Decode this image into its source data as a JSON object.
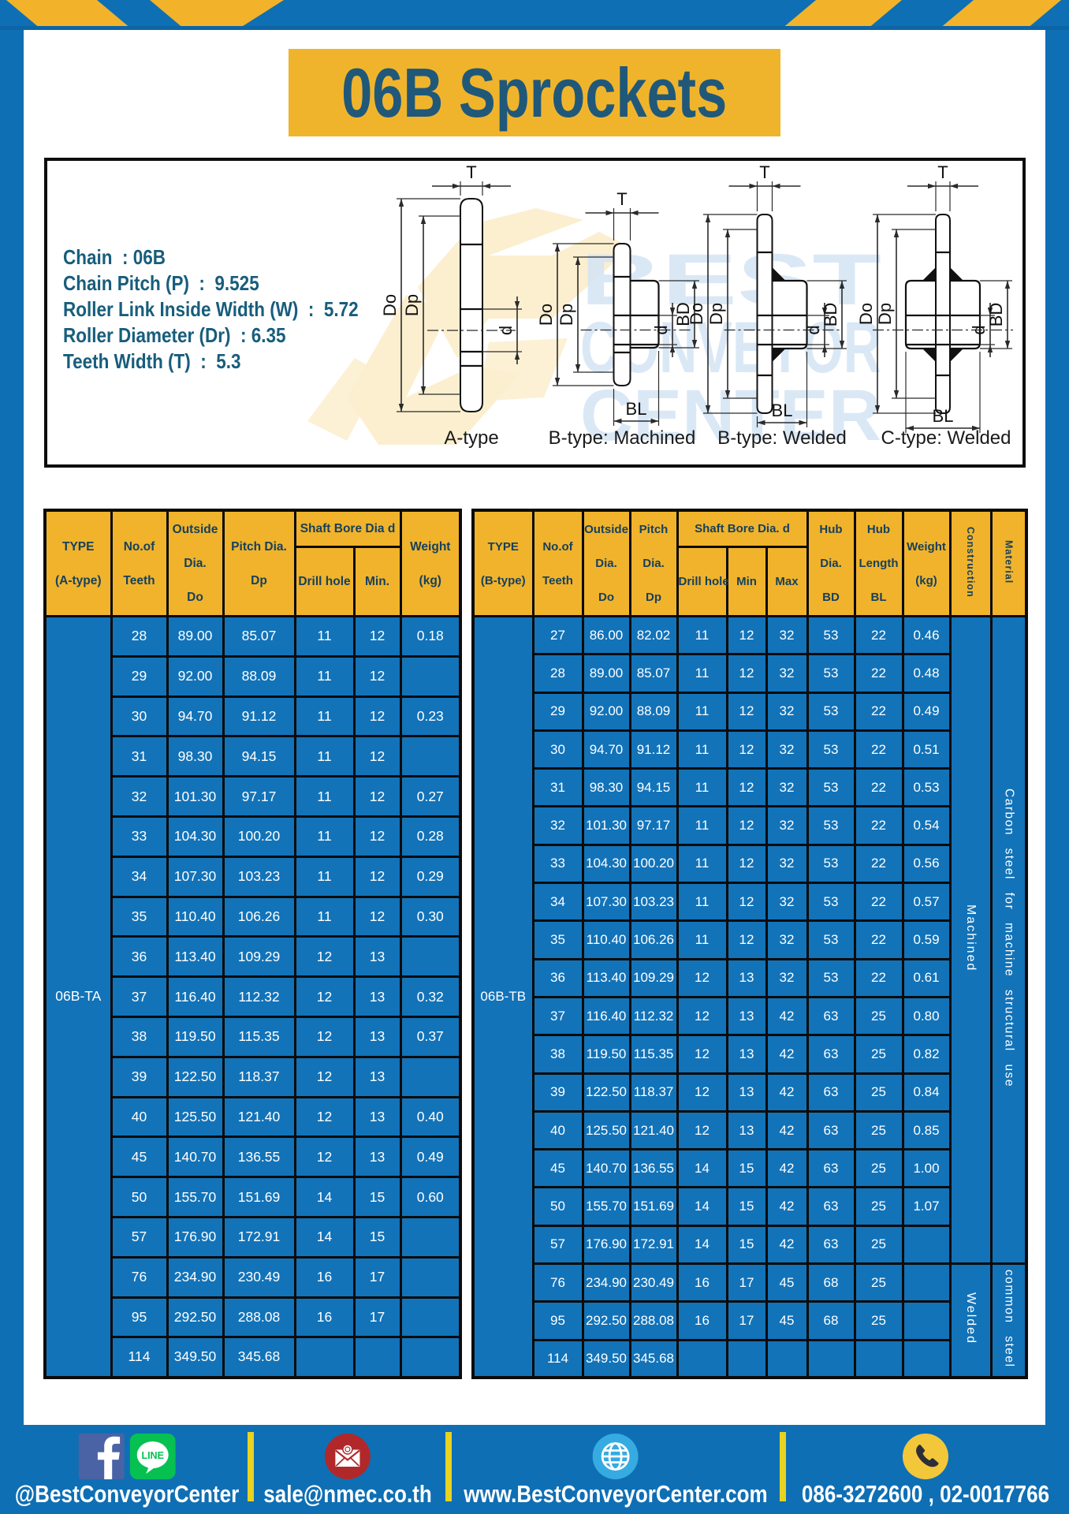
{
  "title": "06B Sprockets",
  "specs": {
    "lines": [
      "Chain  : 06B",
      "Chain Pitch (P)  :  9.525",
      "Roller Link Inside Width (W)  :  5.72",
      "Roller Diameter (Dr)  : 6.35",
      "Teeth Width (T)  :  5.3"
    ]
  },
  "diagram": {
    "captions": [
      "A-type",
      "B-type: Machined",
      "B-type: Welded",
      "C-type: Welded"
    ],
    "labels": {
      "t": "T",
      "outside": "Do",
      "pitch": "Dp",
      "bore": "d",
      "hub_dia": "BD",
      "hub_len": "BL"
    }
  },
  "watermark": {
    "words": [
      "BEST",
      "CONVEYOR",
      "CENTER"
    ]
  },
  "table_a": {
    "header": {
      "type": [
        "TYPE",
        "(A-type)"
      ],
      "teeth": [
        "No.of",
        "Teeth"
      ],
      "outside": [
        "Outside",
        "Dia.",
        "Do"
      ],
      "pitch": [
        "Pitch Dia.",
        "Dp"
      ],
      "shaft_bore": "Shaft Bore Dia d",
      "drill": "Drill hole",
      "min": "Min.",
      "weight": [
        "Weight",
        "(kg)"
      ]
    },
    "type_label": "06B-TA",
    "rows": [
      [
        "28",
        "89.00",
        "85.07",
        "11",
        "12",
        "0.18"
      ],
      [
        "29",
        "92.00",
        "88.09",
        "11",
        "12",
        ""
      ],
      [
        "30",
        "94.70",
        "91.12",
        "11",
        "12",
        "0.23"
      ],
      [
        "31",
        "98.30",
        "94.15",
        "11",
        "12",
        ""
      ],
      [
        "32",
        "101.30",
        "97.17",
        "11",
        "12",
        "0.27"
      ],
      [
        "33",
        "104.30",
        "100.20",
        "11",
        "12",
        "0.28"
      ],
      [
        "34",
        "107.30",
        "103.23",
        "11",
        "12",
        "0.29"
      ],
      [
        "35",
        "110.40",
        "106.26",
        "11",
        "12",
        "0.30"
      ],
      [
        "36",
        "113.40",
        "109.29",
        "12",
        "13",
        ""
      ],
      [
        "37",
        "116.40",
        "112.32",
        "12",
        "13",
        "0.32"
      ],
      [
        "38",
        "119.50",
        "115.35",
        "12",
        "13",
        "0.37"
      ],
      [
        "39",
        "122.50",
        "118.37",
        "12",
        "13",
        ""
      ],
      [
        "40",
        "125.50",
        "121.40",
        "12",
        "13",
        "0.40"
      ],
      [
        "45",
        "140.70",
        "136.55",
        "12",
        "13",
        "0.49"
      ],
      [
        "50",
        "155.70",
        "151.69",
        "14",
        "15",
        "0.60"
      ],
      [
        "57",
        "176.90",
        "172.91",
        "14",
        "15",
        ""
      ],
      [
        "76",
        "234.90",
        "230.49",
        "16",
        "17",
        ""
      ],
      [
        "95",
        "292.50",
        "288.08",
        "16",
        "17",
        ""
      ],
      [
        "114",
        "349.50",
        "345.68",
        "",
        "",
        ""
      ]
    ]
  },
  "table_b": {
    "header": {
      "type": [
        "TYPE",
        "(B-type)"
      ],
      "teeth": [
        "No.of",
        "Teeth"
      ],
      "outside": [
        "Outside",
        "Dia.",
        "Do"
      ],
      "pitch": [
        "Pitch",
        "Dia.",
        "Dp"
      ],
      "shaft_bore": "Shaft Bore Dia.  d",
      "drill": "Drill hole",
      "min": "Min",
      "max": "Max",
      "hub_dia": [
        "Hub",
        "Dia.",
        "BD"
      ],
      "hub_len": [
        "Hub",
        "Length",
        "BL"
      ],
      "weight": [
        "Weight",
        "(kg)"
      ],
      "construction": "Construction",
      "material": "Material"
    },
    "type_label": "06B-TB",
    "rows": [
      [
        "27",
        "86.00",
        "82.02",
        "11",
        "12",
        "32",
        "53",
        "22",
        "0.46"
      ],
      [
        "28",
        "89.00",
        "85.07",
        "11",
        "12",
        "32",
        "53",
        "22",
        "0.48"
      ],
      [
        "29",
        "92.00",
        "88.09",
        "11",
        "12",
        "32",
        "53",
        "22",
        "0.49"
      ],
      [
        "30",
        "94.70",
        "91.12",
        "11",
        "12",
        "32",
        "53",
        "22",
        "0.51"
      ],
      [
        "31",
        "98.30",
        "94.15",
        "11",
        "12",
        "32",
        "53",
        "22",
        "0.53"
      ],
      [
        "32",
        "101.30",
        "97.17",
        "11",
        "12",
        "32",
        "53",
        "22",
        "0.54"
      ],
      [
        "33",
        "104.30",
        "100.20",
        "11",
        "12",
        "32",
        "53",
        "22",
        "0.56"
      ],
      [
        "34",
        "107.30",
        "103.23",
        "11",
        "12",
        "32",
        "53",
        "22",
        "0.57"
      ],
      [
        "35",
        "110.40",
        "106.26",
        "11",
        "12",
        "32",
        "53",
        "22",
        "0.59"
      ],
      [
        "36",
        "113.40",
        "109.29",
        "12",
        "13",
        "32",
        "53",
        "22",
        "0.61"
      ],
      [
        "37",
        "116.40",
        "112.32",
        "12",
        "13",
        "42",
        "63",
        "25",
        "0.80"
      ],
      [
        "38",
        "119.50",
        "115.35",
        "12",
        "13",
        "42",
        "63",
        "25",
        "0.82"
      ],
      [
        "39",
        "122.50",
        "118.37",
        "12",
        "13",
        "42",
        "63",
        "25",
        "0.84"
      ],
      [
        "40",
        "125.50",
        "121.40",
        "12",
        "13",
        "42",
        "63",
        "25",
        "0.85"
      ],
      [
        "45",
        "140.70",
        "136.55",
        "14",
        "15",
        "42",
        "63",
        "25",
        "1.00"
      ],
      [
        "50",
        "155.70",
        "151.69",
        "14",
        "15",
        "42",
        "63",
        "25",
        "1.07"
      ],
      [
        "57",
        "176.90",
        "172.91",
        "14",
        "15",
        "42",
        "63",
        "25",
        ""
      ],
      [
        "76",
        "234.90",
        "230.49",
        "16",
        "17",
        "45",
        "68",
        "25",
        ""
      ],
      [
        "95",
        "292.50",
        "288.08",
        "16",
        "17",
        "45",
        "68",
        "25",
        ""
      ],
      [
        "114",
        "349.50",
        "345.68",
        "",
        "",
        "",
        "",
        "",
        ""
      ]
    ],
    "construction": [
      {
        "label": "Machined",
        "span": 17
      },
      {
        "label": "Welded",
        "span": 3
      }
    ],
    "material": [
      {
        "label": "Carbon steel for machine structural use",
        "span": 17
      },
      {
        "label": "common steel",
        "span": 3
      }
    ]
  },
  "footer": {
    "social_label": "@BestConveyorCenter",
    "email": "sale@nmec.co.th",
    "website": "www.BestConveyorCenter.com",
    "phone": "086-3272600 , 02-0017766"
  },
  "colors": {
    "frame_blue": "#0f6fb4",
    "cell_blue": "#1273b9",
    "accent_yellow": "#f0b42c",
    "divider_yellow": "#e8d222",
    "title_text": "#20587a",
    "spec_text": "#175d7c",
    "header_text": "#17405c",
    "facebook_blue": "#4a63a5",
    "line_green": "#06c152",
    "mail_red": "#b1282b",
    "globe_blue": "#35abe2",
    "phone_yellow": "#f3c73a"
  }
}
